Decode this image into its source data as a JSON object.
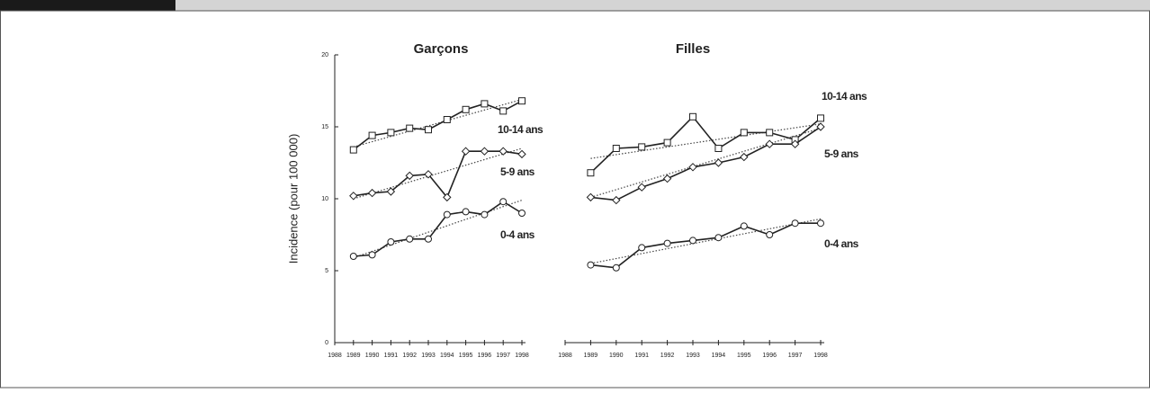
{
  "chart_data": [
    {
      "type": "line",
      "title": "Garçons",
      "ylabel": "Incidence (pour 100 000)",
      "x": [
        1989,
        1990,
        1991,
        1992,
        1993,
        1994,
        1995,
        1996,
        1997,
        1998
      ],
      "xlim": [
        1988,
        1998
      ],
      "xticks": [
        1988,
        1989,
        1990,
        1991,
        1992,
        1993,
        1994,
        1995,
        1996,
        1997,
        1998
      ],
      "ylim": [
        0,
        20
      ],
      "yticks": [
        0,
        5,
        10,
        15,
        20
      ],
      "trend_x": [
        1989,
        1998
      ],
      "series": [
        {
          "name": "10-14 ans",
          "color": "#222222",
          "marker": "square",
          "values": [
            13.4,
            14.4,
            14.6,
            14.9,
            14.8,
            15.5,
            16.2,
            16.6,
            16.1,
            16.8
          ],
          "trend": [
            13.6,
            16.9
          ]
        },
        {
          "name": "5-9 ans",
          "color": "#222222",
          "marker": "diamond",
          "values": [
            10.2,
            10.4,
            10.5,
            11.6,
            11.7,
            10.1,
            13.3,
            13.3,
            13.3,
            13.1
          ],
          "trend": [
            10.0,
            13.5
          ]
        },
        {
          "name": "0-4 ans",
          "color": "#222222",
          "marker": "circle",
          "values": [
            6.0,
            6.1,
            7.0,
            7.2,
            7.2,
            8.9,
            9.1,
            8.9,
            9.8,
            9.0
          ],
          "trend": [
            5.9,
            9.9
          ]
        }
      ]
    },
    {
      "type": "line",
      "title": "Filles",
      "x": [
        1989,
        1990,
        1991,
        1992,
        1993,
        1994,
        1995,
        1996,
        1997,
        1998
      ],
      "xlim": [
        1988,
        1998
      ],
      "xticks": [
        1988,
        1989,
        1990,
        1991,
        1992,
        1993,
        1994,
        1995,
        1996,
        1997,
        1998
      ],
      "ylim": [
        0,
        20
      ],
      "trend_x": [
        1989,
        1998
      ],
      "series": [
        {
          "name": "10-14 ans",
          "color": "#222222",
          "marker": "square",
          "values": [
            11.8,
            13.5,
            13.6,
            13.9,
            15.7,
            13.5,
            14.6,
            14.6,
            14.1,
            15.6
          ],
          "trend": [
            12.8,
            15.2
          ]
        },
        {
          "name": "5-9 ans",
          "color": "#222222",
          "marker": "diamond",
          "values": [
            10.1,
            9.9,
            10.8,
            11.4,
            12.2,
            12.5,
            12.9,
            13.8,
            13.8,
            15.0
          ],
          "trend": [
            10.1,
            14.9
          ]
        },
        {
          "name": "0-4 ans",
          "color": "#222222",
          "marker": "circle",
          "values": [
            5.4,
            5.2,
            6.6,
            6.9,
            7.1,
            7.3,
            8.1,
            7.5,
            8.3,
            8.3
          ],
          "trend": [
            5.5,
            8.6
          ]
        }
      ]
    }
  ]
}
